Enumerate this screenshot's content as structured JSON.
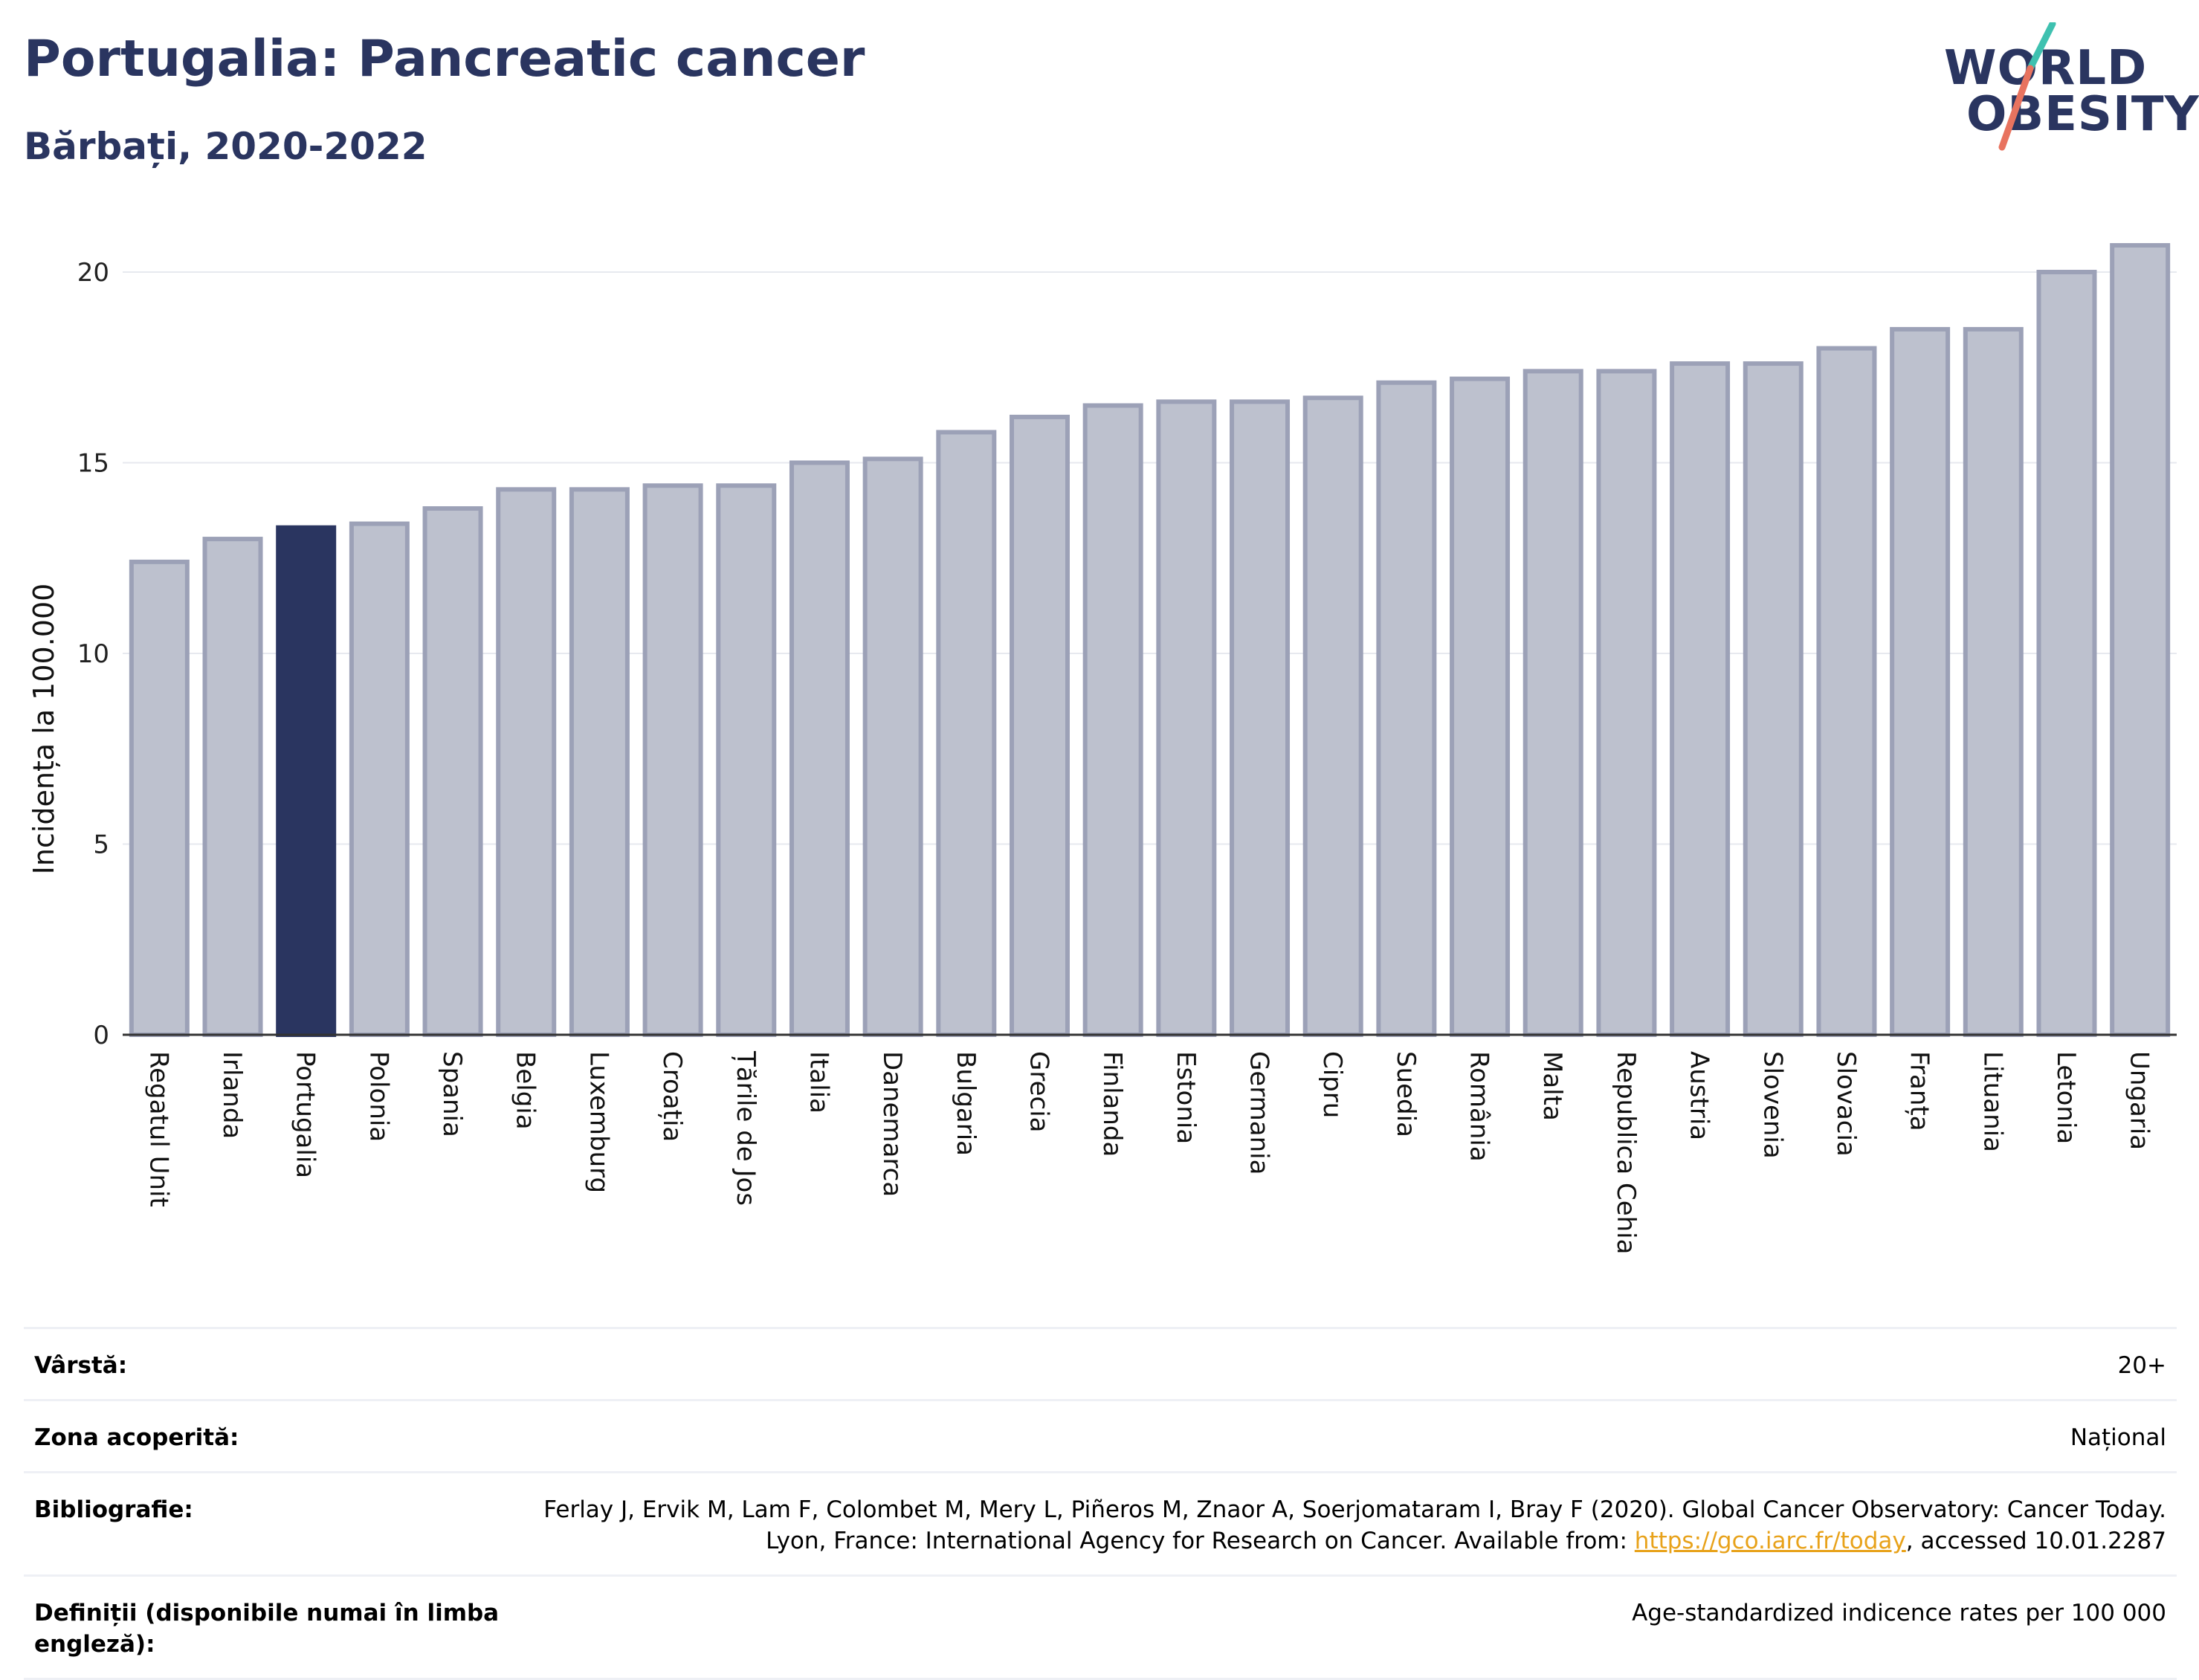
{
  "header": {
    "title": "Portugalia: Pancreatic cancer",
    "subtitle": "Bărbați, 2020-2022"
  },
  "logo": {
    "line1": "WORLD",
    "line2": "OBESITY"
  },
  "colors": {
    "highlight_bar": "#2a3560",
    "bar_fill": "#bdc1ce",
    "bar_stroke": "#9ca1b7",
    "title": "#2a3560",
    "logo_teal": "#3fc1b0",
    "logo_coral": "#e8735f",
    "link": "#e8a21a"
  },
  "chart_data": {
    "type": "bar",
    "ylabel": "Incidența la 100.000",
    "ylim": [
      0,
      21.5
    ],
    "yticks": [
      0,
      5,
      10,
      15,
      20
    ],
    "grid": true,
    "highlight": "Portugalia",
    "categories": [
      "Regatul Unit",
      "Irlanda",
      "Portugalia",
      "Polonia",
      "Spania",
      "Belgia",
      "Luxemburg",
      "Croația",
      "Țările de Jos",
      "Italia",
      "Danemarca",
      "Bulgaria",
      "Grecia",
      "Finlanda",
      "Estonia",
      "Germania",
      "Cipru",
      "Suedia",
      "România",
      "Malta",
      "Republica Cehia",
      "Austria",
      "Slovenia",
      "Slovacia",
      "Franța",
      "Lituania",
      "Letonia",
      "Ungaria"
    ],
    "values": [
      12.4,
      13.0,
      13.3,
      13.4,
      13.8,
      14.3,
      14.3,
      14.4,
      14.4,
      15.0,
      15.1,
      15.8,
      16.2,
      16.5,
      16.6,
      16.6,
      16.7,
      17.1,
      17.2,
      17.4,
      17.4,
      17.6,
      17.6,
      18.0,
      18.5,
      18.5,
      20.0,
      20.7
    ]
  },
  "meta": [
    {
      "label": "Vârstă:",
      "value": "20+"
    },
    {
      "label": "Zona acoperită:",
      "value": "Național"
    },
    {
      "label": "Bibliografie:",
      "value_pre": "Ferlay J, Ervik M, Lam F, Colombet M, Mery L, Piñeros M, Znaor A, Soerjomataram I, Bray F (2020). Global Cancer Observatory: Cancer Today. Lyon, France: International Agency for Research on Cancer. Available from: ",
      "link": "https://gco.iarc.fr/today",
      "value_post": ", accessed 10.01.2287"
    },
    {
      "label": "Definiții (disponibile numai în limba engleză):",
      "value": "Age-standardized indicence rates per 100 000"
    }
  ]
}
